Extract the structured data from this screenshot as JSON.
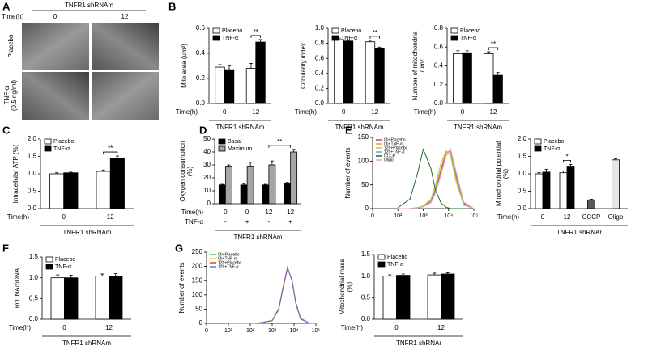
{
  "panel_a": {
    "label": "A",
    "time_label": "Time(h)",
    "group_label": "TNFR1 shRNAm",
    "times": [
      "0",
      "12"
    ],
    "rows": [
      "Placebo",
      "TNF-α",
      "(0.5 ng/ml)"
    ]
  },
  "chart_data": [
    {
      "type": "bar",
      "panel": "B",
      "ylabel": "Mito area (um²)",
      "ylim": [
        0,
        0.6
      ],
      "yticks": [
        {
          "value": 0,
          "label": "0.0"
        },
        0.2,
        0.4,
        0.6
      ],
      "categories": [
        "0",
        "12"
      ],
      "row_label": "Time(h)",
      "group_label": "TNFR1 shRNAm",
      "series": [
        {
          "name": "Placebo",
          "color": "#ffffff",
          "values": [
            0.29,
            0.28
          ],
          "errors": [
            0.02,
            0.04
          ]
        },
        {
          "name": "TNF-α",
          "color": "#000000",
          "values": [
            0.27,
            0.49
          ],
          "errors": [
            0.03,
            0.02
          ]
        }
      ],
      "significance": [
        {
          "label": "**",
          "categories": [
            1
          ]
        }
      ]
    },
    {
      "type": "bar",
      "ylabel": "Circularity index",
      "ylim": [
        0,
        1.0
      ],
      "yticks": [
        {
          "value": 0,
          "label": "0.0"
        },
        0.2,
        0.4,
        0.6,
        0.8,
        {
          "value": 1.0,
          "label": "1.0"
        }
      ],
      "categories": [
        "0",
        "12"
      ],
      "row_label": "Time(h)",
      "group_label": "TNFR1 shRNAm",
      "series": [
        {
          "name": "Placebo",
          "color": "#ffffff",
          "values": [
            0.85,
            0.82
          ],
          "errors": [
            0.02,
            0.02
          ]
        },
        {
          "name": "TNF-α",
          "color": "#000000",
          "values": [
            0.83,
            0.73
          ],
          "errors": [
            0.01,
            0.02
          ]
        }
      ],
      "significance": [
        {
          "label": "**",
          "categories": [
            1
          ]
        }
      ]
    },
    {
      "type": "bar",
      "ylabel": [
        "Number of mitochondria",
        "/um²"
      ],
      "ylim": [
        0,
        0.8
      ],
      "yticks": [
        {
          "value": 0,
          "label": "0.0"
        },
        0.2,
        0.4,
        0.6,
        0.8
      ],
      "categories": [
        "0",
        "12"
      ],
      "row_label": "Time(h)",
      "group_label": "TNFR1 shRNAm",
      "series": [
        {
          "name": "Placebo",
          "color": "#ffffff",
          "values": [
            0.53,
            0.53
          ],
          "errors": [
            0.03,
            0.02
          ]
        },
        {
          "name": "TNF-α",
          "color": "#000000",
          "values": [
            0.54,
            0.3
          ],
          "errors": [
            0.02,
            0.03
          ]
        }
      ],
      "significance": [
        {
          "label": "**",
          "categories": [
            1
          ]
        }
      ]
    },
    {
      "type": "bar",
      "panel": "C",
      "ylabel": "Intracellular ATP (%)",
      "ylim": [
        0,
        2.0
      ],
      "yticks": [
        {
          "value": 0,
          "label": "0.0"
        },
        0.5,
        {
          "value": 1.0,
          "label": "1.0"
        },
        1.5,
        {
          "value": 2.0,
          "label": "2.0"
        }
      ],
      "categories": [
        "0",
        "12"
      ],
      "row_label": "Time(h)",
      "group_label": "TNFR1 shRNAm",
      "series": [
        {
          "name": "Placebo",
          "color": "#ffffff",
          "values": [
            1.0,
            1.07
          ],
          "errors": [
            0.03,
            0.04
          ]
        },
        {
          "name": "TNF-α",
          "color": "#000000",
          "values": [
            1.03,
            1.45
          ],
          "errors": [
            0.02,
            0.06
          ]
        }
      ],
      "significance": [
        {
          "label": "**",
          "categories": [
            1
          ]
        }
      ]
    },
    {
      "type": "bar",
      "panel": "D",
      "ylabel": [
        "Oxygen consumption",
        "(%)"
      ],
      "ylim": [
        0,
        50
      ],
      "yticks": [
        0,
        10,
        20,
        30,
        40,
        50
      ],
      "categories": [
        "0",
        "0",
        "12",
        "12"
      ],
      "row_label": "Time(h)",
      "categories2": [
        "-",
        "+",
        "-",
        "+"
      ],
      "row_label2": "TNF-α",
      "group_label": "TNFR1 shRNAm",
      "series": [
        {
          "name": "Basal",
          "color": "#000000",
          "values": [
            14.5,
            14.5,
            14.5,
            15.5
          ],
          "errors": [
            0.5,
            1,
            0.5,
            1
          ]
        },
        {
          "name": "Maximum",
          "color": "#a6a6a6",
          "values": [
            29,
            29,
            30,
            40
          ],
          "errors": [
            1,
            3,
            3,
            2
          ]
        }
      ],
      "significance": [
        {
          "label": "**",
          "categories": [
            2,
            3
          ]
        }
      ]
    },
    {
      "type": "line",
      "panel": "E",
      "ylabel": "Number of events",
      "ylim": [
        0,
        150
      ],
      "yticks": [
        0,
        50,
        100,
        150
      ],
      "xlim": [
        0,
        100000
      ],
      "xscale": "symlog",
      "linthresh": 100,
      "xticks": [
        0,
        {
          "value": 100,
          "label": "10²"
        },
        {
          "value": 1000,
          "label": "10³"
        },
        {
          "value": 10000,
          "label": "10⁴"
        },
        {
          "value": 100000,
          "label": "10⁵"
        }
      ],
      "x": [
        100,
        300,
        600,
        1000,
        2000,
        3000,
        5000,
        8000,
        12000,
        20000,
        40000,
        100000
      ],
      "series": [
        {
          "name": "0h+Placebo",
          "color": "#e8392f",
          "values": [
            0,
            0,
            2,
            5,
            15,
            38,
            80,
            118,
            122,
            68,
            10,
            0
          ]
        },
        {
          "name": "0h+TNF-α",
          "color": "#f39a2b",
          "values": [
            0,
            0,
            2,
            6,
            18,
            42,
            85,
            120,
            118,
            62,
            8,
            0
          ]
        },
        {
          "name": "12h+Placebo",
          "color": "#a8d94a",
          "values": [
            0,
            0,
            2,
            6,
            20,
            48,
            95,
            122,
            110,
            55,
            7,
            0
          ]
        },
        {
          "name": "12h+TNF-α",
          "color": "#5aa8e0",
          "values": [
            0,
            0,
            1,
            4,
            14,
            35,
            75,
            112,
            125,
            72,
            12,
            0
          ]
        },
        {
          "name": "CCCP",
          "color": "#1f6b2a",
          "values": [
            2,
            20,
            75,
            125,
            85,
            40,
            12,
            3,
            0,
            0,
            0,
            0
          ]
        },
        {
          "name": "Oligo",
          "color": "#f2a0c0",
          "values": [
            0,
            0,
            1,
            4,
            12,
            30,
            70,
            110,
            126,
            78,
            14,
            0
          ]
        }
      ]
    },
    {
      "type": "bar",
      "ylabel": [
        "Mitochondrial potential",
        "(%)"
      ],
      "ylim": [
        0,
        2.0
      ],
      "yticks": [
        {
          "value": 0,
          "label": "0.0"
        },
        0.5,
        {
          "value": 1.0,
          "label": "1.0"
        },
        1.5,
        {
          "value": 2.0,
          "label": "2.0"
        }
      ],
      "categories": [
        "0",
        "12",
        "CCCP",
        "Oligo"
      ],
      "row_label": "Time(h)",
      "group_label": "TNFR1 shRNAr",
      "series": [
        {
          "name": "Placebo",
          "color": "#ffffff",
          "values": [
            1.0,
            1.03,
            null,
            null
          ],
          "errors": [
            0.03,
            0.05,
            null,
            null
          ]
        },
        {
          "name": "TNF-α",
          "color": "#000000",
          "values": [
            1.05,
            1.22,
            null,
            null
          ],
          "errors": [
            0.08,
            0.05,
            null,
            null
          ]
        }
      ],
      "single_values": [
        null,
        null,
        0.25,
        1.4
      ],
      "single_errors": [
        null,
        null,
        0.02,
        0.03
      ],
      "single_colors": [
        null,
        null,
        "#595959",
        "#e6e6e6"
      ],
      "significance": [
        {
          "label": "*",
          "categories": [
            1
          ]
        }
      ]
    },
    {
      "type": "bar",
      "panel": "F",
      "ylabel": "mtDNA/nDNA",
      "ylim": [
        0,
        1.5
      ],
      "yticks": [
        {
          "value": 0,
          "label": "0.0"
        },
        0.5,
        {
          "value": 1.0,
          "label": "1.0"
        },
        1.5
      ],
      "categories": [
        "0",
        "12"
      ],
      "row_label": "Time(h)",
      "group_label": "TNFR1 shRNAm",
      "series": [
        {
          "name": "Placebo",
          "color": "#ffffff",
          "values": [
            1.0,
            1.04
          ],
          "errors": [
            0.07,
            0.05
          ]
        },
        {
          "name": "TNF-α",
          "color": "#000000",
          "values": [
            1.0,
            1.04
          ],
          "errors": [
            0.06,
            0.06
          ]
        }
      ]
    },
    {
      "type": "line",
      "panel": "G",
      "ylabel": "Number of events",
      "ylim": [
        0,
        250
      ],
      "yticks": [
        0,
        50,
        100,
        150,
        200,
        250
      ],
      "xlim": [
        0,
        100000
      ],
      "xscale": "symlog",
      "linthresh": 10,
      "xticks": [
        0,
        {
          "value": 10,
          "label": "10¹"
        },
        {
          "value": 100,
          "label": "10²"
        },
        {
          "value": 1000,
          "label": "10³"
        },
        {
          "value": 10000,
          "label": "10⁴"
        },
        {
          "value": 100000,
          "label": "10⁵"
        }
      ],
      "x": [
        10,
        100,
        300,
        1000,
        2000,
        3000,
        5000,
        8000,
        12000,
        20000,
        50000,
        100000
      ],
      "series": [
        {
          "name": "0h+Placebo",
          "color": "#4cbf4c",
          "values": [
            0,
            0,
            2,
            10,
            50,
            118,
            195,
            152,
            72,
            16,
            1,
            0
          ]
        },
        {
          "name": "0h+TNF-α",
          "color": "#e8d23a",
          "values": [
            0,
            0,
            2,
            11,
            54,
            124,
            200,
            148,
            68,
            14,
            1,
            0
          ]
        },
        {
          "name": "12h+Placebo",
          "color": "#e8392f",
          "values": [
            0,
            0,
            2,
            9,
            48,
            115,
            192,
            155,
            75,
            17,
            1,
            0
          ]
        },
        {
          "name": "12h+TNF-α",
          "color": "#5a78e0",
          "values": [
            0,
            0,
            2,
            10,
            52,
            120,
            197,
            150,
            70,
            15,
            1,
            0
          ]
        }
      ]
    },
    {
      "type": "bar",
      "ylabel": [
        "Mitochondrial mass",
        "(%)"
      ],
      "ylim": [
        0,
        1.5
      ],
      "yticks": [
        {
          "value": 0,
          "label": "0.0"
        },
        0.5,
        {
          "value": 1.0,
          "label": "1.0"
        },
        1.5
      ],
      "categories": [
        "0",
        "12"
      ],
      "row_label": "Time(h)",
      "group_label": "TNFR1 shRNAr",
      "series": [
        {
          "name": "Placebo",
          "color": "#ffffff",
          "values": [
            1.0,
            1.03
          ],
          "errors": [
            0.03,
            0.04
          ]
        },
        {
          "name": "TNF-α",
          "color": "#000000",
          "values": [
            1.02,
            1.05
          ],
          "errors": [
            0.03,
            0.03
          ]
        }
      ]
    }
  ]
}
